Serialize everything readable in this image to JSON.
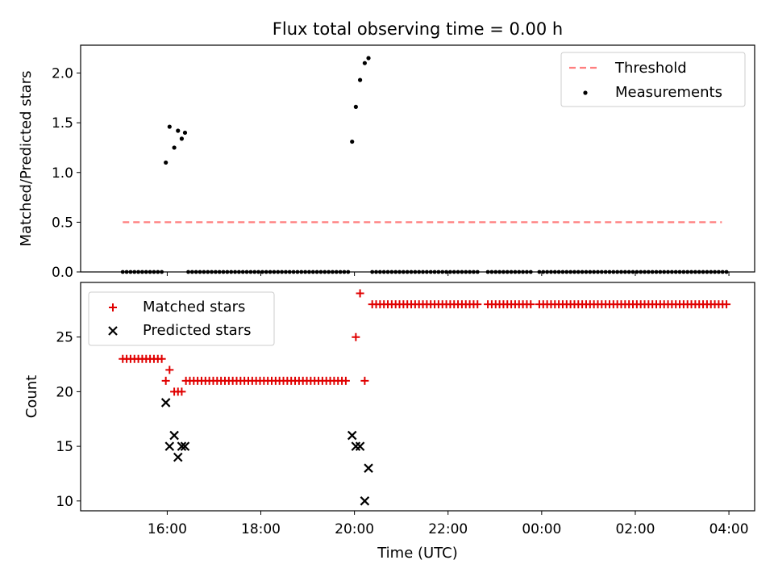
{
  "figure": {
    "title": "Flux total observing time = 0.00 h",
    "x_axis_label": "Time (UTC)",
    "x_tick_labels": [
      {
        "t": 16,
        "label": "16:00"
      },
      {
        "t": 18,
        "label": "18:00"
      },
      {
        "t": 20,
        "label": "20:00"
      },
      {
        "t": 22,
        "label": "22:00"
      },
      {
        "t": 24,
        "label": "00:00"
      },
      {
        "t": 26,
        "label": "02:00"
      },
      {
        "t": 28,
        "label": "04:00"
      }
    ]
  },
  "colors": {
    "threshold": "#ff7f7f",
    "measurements": "#000000",
    "matched": "#e00000",
    "predicted": "#000000"
  },
  "chart_data": [
    {
      "type": "scatter",
      "title": "Flux total observing time = 0.00 h",
      "ylabel": "Matched/Predicted stars",
      "xlabel": "",
      "xlim": [
        14.15,
        28.55
      ],
      "ylim": [
        0,
        2.28
      ],
      "y_ticks": [
        0.0,
        0.5,
        1.0,
        1.5,
        2.0
      ],
      "y_tick_labels": [
        "0.0",
        "0.5",
        "1.0",
        "1.5",
        "2.0"
      ],
      "grid": false,
      "legend": {
        "position": "top-right",
        "entries": [
          "Threshold",
          "Measurements"
        ]
      },
      "threshold": {
        "name": "Threshold",
        "y": 0.5,
        "x_start": 15.05,
        "x_end": 27.85
      },
      "measurements": {
        "name": "Measurements",
        "points": [
          [
            15.97,
            1.1
          ],
          [
            16.05,
            1.46
          ],
          [
            16.15,
            1.25
          ],
          [
            16.23,
            1.42
          ],
          [
            16.31,
            1.34
          ],
          [
            16.38,
            1.4
          ],
          [
            19.95,
            1.31
          ],
          [
            20.03,
            1.66
          ],
          [
            20.12,
            1.93
          ],
          [
            20.22,
            2.1
          ],
          [
            20.3,
            2.15
          ]
        ],
        "zero_ranges": [
          [
            15.05,
            15.85,
            0.0833
          ],
          [
            16.45,
            19.85,
            0.0833
          ],
          [
            20.38,
            22.65,
            0.0833
          ],
          [
            22.85,
            23.75,
            0.0833
          ],
          [
            23.95,
            27.95,
            0.0833
          ]
        ]
      }
    },
    {
      "type": "scatter",
      "ylabel": "Count",
      "xlabel": "Time (UTC)",
      "xlim": [
        14.15,
        28.55
      ],
      "ylim": [
        9.1,
        30.0
      ],
      "y_ticks": [
        10,
        15,
        20,
        25
      ],
      "y_tick_labels": [
        "10",
        "15",
        "20",
        "25"
      ],
      "grid": false,
      "legend": {
        "position": "top-left",
        "entries": [
          "Matched stars",
          "Predicted stars"
        ]
      },
      "series": [
        {
          "name": "Matched stars",
          "marker": "plus",
          "ranges": [
            [
              15.05,
              15.85,
              0.0833,
              23
            ],
            [
              16.4,
              19.85,
              0.0833,
              21
            ],
            [
              20.38,
              22.65,
              0.0833,
              28
            ],
            [
              22.85,
              23.75,
              0.0833,
              28
            ],
            [
              23.95,
              27.95,
              0.0833,
              28
            ]
          ],
          "points": [
            [
              15.97,
              21
            ],
            [
              16.05,
              22
            ],
            [
              16.15,
              20
            ],
            [
              16.23,
              20
            ],
            [
              16.31,
              20
            ],
            [
              20.03,
              25
            ],
            [
              20.12,
              29
            ],
            [
              20.22,
              21
            ]
          ]
        },
        {
          "name": "Predicted stars",
          "marker": "x",
          "points": [
            [
              15.97,
              19
            ],
            [
              16.05,
              15
            ],
            [
              16.15,
              16
            ],
            [
              16.23,
              14
            ],
            [
              16.31,
              15
            ],
            [
              16.38,
              15
            ],
            [
              19.95,
              16
            ],
            [
              20.03,
              15
            ],
            [
              20.12,
              15
            ],
            [
              20.22,
              10
            ],
            [
              20.3,
              13
            ]
          ]
        }
      ]
    }
  ]
}
